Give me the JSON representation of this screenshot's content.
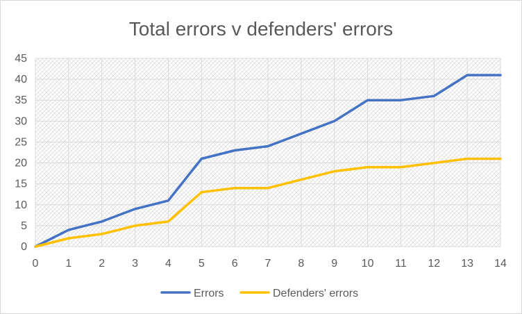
{
  "chart_data": {
    "type": "line",
    "title": "Total errors v defenders' errors",
    "xlabel": "",
    "ylabel": "",
    "x": [
      0,
      1,
      2,
      3,
      4,
      5,
      6,
      7,
      8,
      9,
      10,
      11,
      12,
      13,
      14
    ],
    "x_tick_labels": [
      "0",
      "1",
      "2",
      "3",
      "4",
      "5",
      "6",
      "7",
      "8",
      "9",
      "10",
      "11",
      "12",
      "13",
      "14"
    ],
    "ylim": [
      0,
      45
    ],
    "y_ticks": [
      0,
      5,
      10,
      15,
      20,
      25,
      30,
      35,
      40,
      45
    ],
    "y_tick_labels": [
      "0",
      "5",
      "10",
      "15",
      "20",
      "25",
      "30",
      "35",
      "40",
      "45"
    ],
    "grid": true,
    "plot_background": "hatched",
    "legend_position": "bottom",
    "series": [
      {
        "name": "Errors",
        "color": "#4472c4",
        "values": [
          0,
          4,
          6,
          9,
          11,
          21,
          23,
          24,
          27,
          30,
          35,
          35,
          36,
          41,
          41
        ]
      },
      {
        "name": "Defenders' errors",
        "color": "#ffc000",
        "values": [
          0,
          2,
          3,
          5,
          6,
          13,
          14,
          14,
          16,
          18,
          19,
          19,
          20,
          21,
          21
        ]
      }
    ]
  }
}
